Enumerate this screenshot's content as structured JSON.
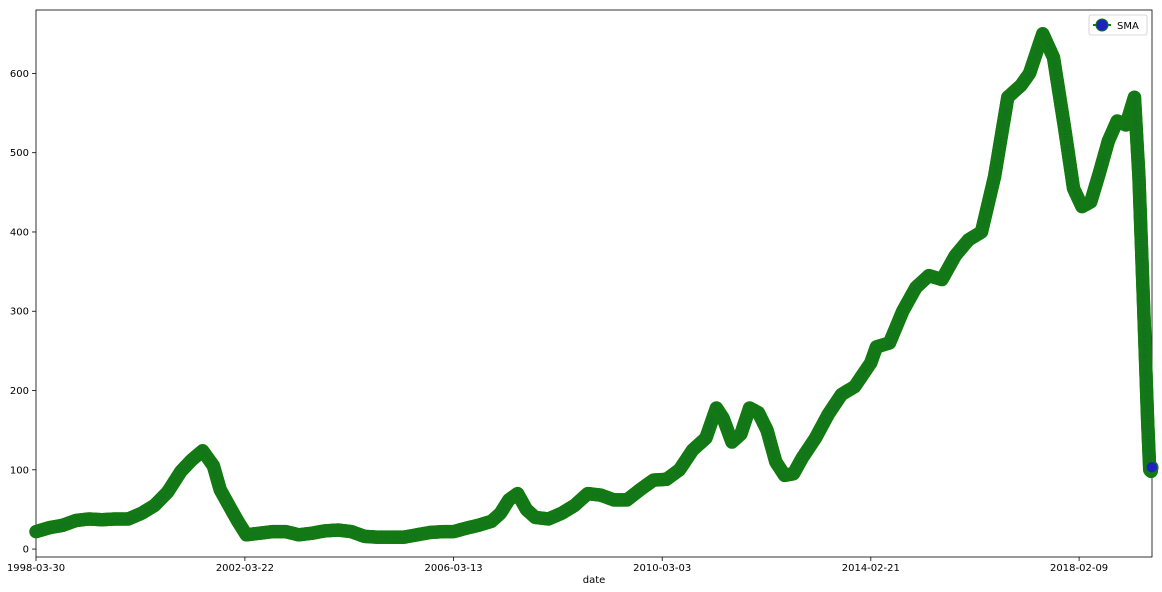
{
  "chart_data": {
    "type": "line",
    "xlabel": "date",
    "ylabel": "",
    "xlim": [
      "1998-03-30",
      "2019-07-01"
    ],
    "ylim": [
      -10,
      680
    ],
    "x_ticks": [
      "1998-03-30",
      "2002-03-22",
      "2006-03-13",
      "2010-03-03",
      "2014-02-21",
      "2018-02-09"
    ],
    "y_ticks": [
      0,
      100,
      200,
      300,
      400,
      500,
      600
    ],
    "grid": false,
    "legend": {
      "placement": "top-right",
      "entries": [
        "SMA"
      ]
    },
    "series": [
      {
        "name": "SMA",
        "marker": "circle",
        "marker_color": "#1f22c2",
        "line_color": "#137a13",
        "points": [
          [
            "1998-03-30",
            22
          ],
          [
            "1998-07-01",
            27
          ],
          [
            "1998-10-01",
            30
          ],
          [
            "1999-01-01",
            36
          ],
          [
            "1999-04-01",
            38
          ],
          [
            "1999-07-01",
            37
          ],
          [
            "1999-10-01",
            38
          ],
          [
            "2000-01-01",
            38
          ],
          [
            "2000-04-01",
            45
          ],
          [
            "2000-07-01",
            55
          ],
          [
            "2000-10-01",
            72
          ],
          [
            "2001-01-01",
            98
          ],
          [
            "2001-03-15",
            112
          ],
          [
            "2001-06-01",
            124
          ],
          [
            "2001-08-15",
            105
          ],
          [
            "2001-10-01",
            75
          ],
          [
            "2001-12-01",
            55
          ],
          [
            "2002-02-01",
            35
          ],
          [
            "2002-04-01",
            18
          ],
          [
            "2002-07-01",
            20
          ],
          [
            "2002-10-01",
            22
          ],
          [
            "2003-01-01",
            22
          ],
          [
            "2003-04-01",
            18
          ],
          [
            "2003-07-01",
            20
          ],
          [
            "2003-10-01",
            23
          ],
          [
            "2004-01-01",
            24
          ],
          [
            "2004-04-01",
            22
          ],
          [
            "2004-07-01",
            16
          ],
          [
            "2004-10-01",
            15
          ],
          [
            "2005-01-01",
            15
          ],
          [
            "2005-04-01",
            15
          ],
          [
            "2005-07-01",
            18
          ],
          [
            "2005-10-01",
            21
          ],
          [
            "2006-01-01",
            22
          ],
          [
            "2006-03-13",
            22
          ],
          [
            "2006-06-01",
            26
          ],
          [
            "2006-09-01",
            30
          ],
          [
            "2006-12-01",
            35
          ],
          [
            "2007-02-01",
            45
          ],
          [
            "2007-04-01",
            62
          ],
          [
            "2007-06-01",
            70
          ],
          [
            "2007-08-01",
            50
          ],
          [
            "2007-10-01",
            40
          ],
          [
            "2008-01-01",
            38
          ],
          [
            "2008-04-01",
            45
          ],
          [
            "2008-07-01",
            55
          ],
          [
            "2008-10-01",
            70
          ],
          [
            "2009-01-01",
            68
          ],
          [
            "2009-04-01",
            62
          ],
          [
            "2009-07-01",
            62
          ],
          [
            "2009-10-01",
            75
          ],
          [
            "2010-01-01",
            87
          ],
          [
            "2010-04-01",
            88
          ],
          [
            "2010-07-01",
            100
          ],
          [
            "2010-10-01",
            125
          ],
          [
            "2011-01-01",
            140
          ],
          [
            "2011-03-15",
            178
          ],
          [
            "2011-05-01",
            165
          ],
          [
            "2011-07-01",
            135
          ],
          [
            "2011-09-01",
            145
          ],
          [
            "2011-11-01",
            178
          ],
          [
            "2012-01-01",
            172
          ],
          [
            "2012-03-01",
            150
          ],
          [
            "2012-05-01",
            110
          ],
          [
            "2012-07-01",
            93
          ],
          [
            "2012-09-01",
            95
          ],
          [
            "2012-11-01",
            115
          ],
          [
            "2013-02-01",
            140
          ],
          [
            "2013-05-01",
            170
          ],
          [
            "2013-08-01",
            195
          ],
          [
            "2013-11-01",
            205
          ],
          [
            "2014-02-21",
            235
          ],
          [
            "2014-04-01",
            255
          ],
          [
            "2014-07-01",
            260
          ],
          [
            "2014-10-01",
            300
          ],
          [
            "2015-01-01",
            330
          ],
          [
            "2015-04-01",
            345
          ],
          [
            "2015-07-01",
            340
          ],
          [
            "2015-10-01",
            370
          ],
          [
            "2016-01-01",
            390
          ],
          [
            "2016-04-01",
            400
          ],
          [
            "2016-07-01",
            470
          ],
          [
            "2016-10-01",
            570
          ],
          [
            "2017-01-01",
            585
          ],
          [
            "2017-03-01",
            600
          ],
          [
            "2017-06-01",
            650
          ],
          [
            "2017-08-15",
            620
          ],
          [
            "2017-11-01",
            530
          ],
          [
            "2018-01-01",
            455
          ],
          [
            "2018-03-01",
            432
          ],
          [
            "2018-05-01",
            438
          ],
          [
            "2018-07-01",
            475
          ],
          [
            "2018-09-01",
            515
          ],
          [
            "2018-11-01",
            540
          ],
          [
            "2019-01-01",
            535
          ],
          [
            "2019-03-01",
            570
          ],
          [
            "2019-04-01",
            470
          ],
          [
            "2019-05-01",
            320
          ],
          [
            "2019-06-01",
            160
          ],
          [
            "2019-06-15",
            100
          ],
          [
            "2019-06-25",
            98
          ],
          [
            "2019-07-01",
            105
          ]
        ]
      }
    ]
  }
}
